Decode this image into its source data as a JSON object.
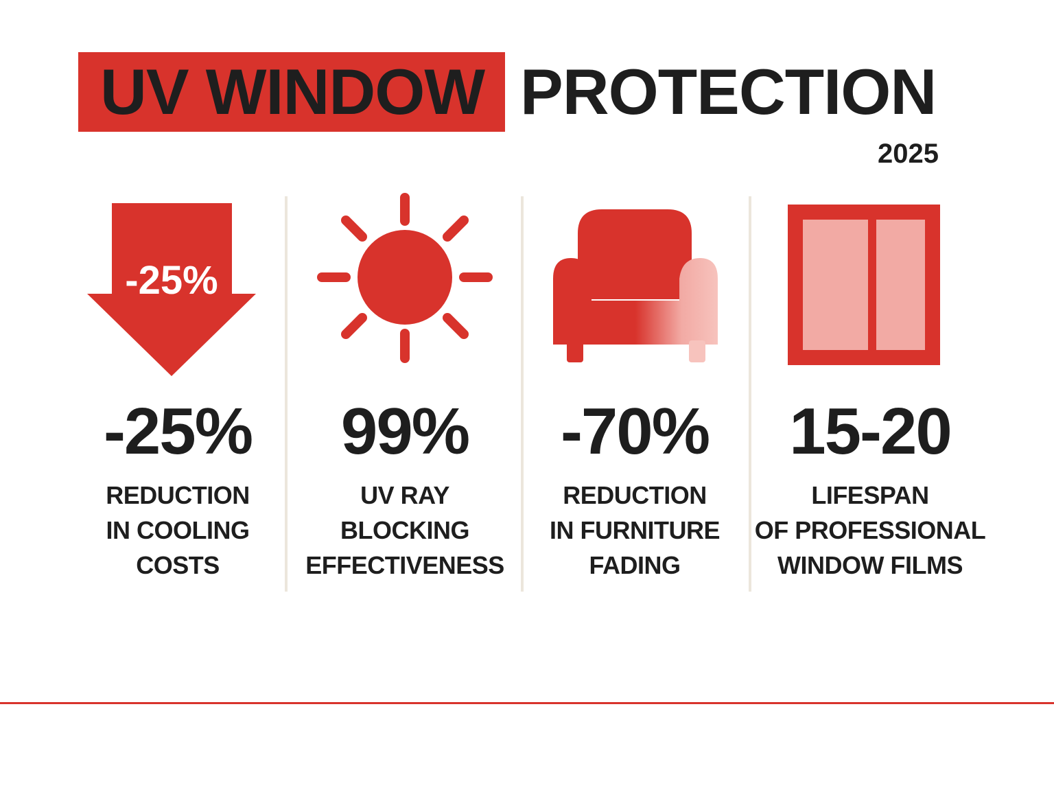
{
  "header": {
    "title_highlight": "UV WINDOW",
    "title_rest": "PROTECTION",
    "year": "2025"
  },
  "colors": {
    "accent": "#d8332c",
    "accent_light": "#f2aaa4",
    "text": "#1e1e1e",
    "divider": "#ece6dc"
  },
  "stats": [
    {
      "icon": "down-arrow-icon",
      "icon_label": "-25%",
      "value": "-25%",
      "description": [
        "REDUCTION",
        "IN COOLING",
        "COSTS"
      ]
    },
    {
      "icon": "sun-icon",
      "value": "99%",
      "description": [
        "UV RAY",
        "BLOCKING",
        "EFFECTIVENESS"
      ]
    },
    {
      "icon": "armchair-icon",
      "value": "-70%",
      "description": [
        "REDUCTION",
        "IN FURNITURE",
        "FADING"
      ]
    },
    {
      "icon": "window-icon",
      "value": "15-20",
      "description": [
        "LIFESPAN",
        "OF PROFESSIONAL",
        "WINDOW FILMS"
      ]
    }
  ]
}
